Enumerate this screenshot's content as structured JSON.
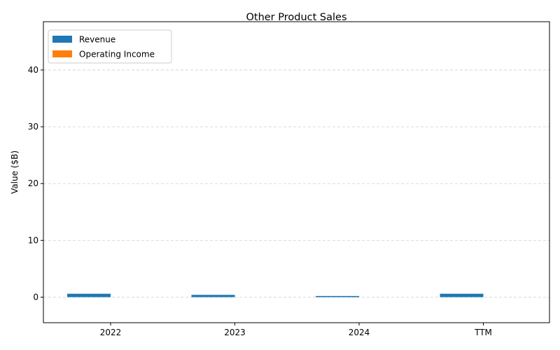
{
  "chart_data": {
    "type": "bar",
    "title": "Other Product Sales",
    "xlabel": "",
    "ylabel": "Value ($B)",
    "categories": [
      "2022",
      "2023",
      "2024",
      "TTM"
    ],
    "series": [
      {
        "name": "Revenue",
        "color": "#1f77b4",
        "values": [
          0.6,
          0.4,
          0.2,
          0.6
        ]
      },
      {
        "name": "Operating Income",
        "color": "#ff7f0e",
        "values": [
          0,
          0,
          0,
          0
        ]
      }
    ],
    "yticks": [
      "0",
      "10",
      "20",
      "30",
      "40"
    ],
    "ylim": [
      -4.5,
      48.5
    ],
    "grid": true,
    "legend_position": "upper left"
  }
}
